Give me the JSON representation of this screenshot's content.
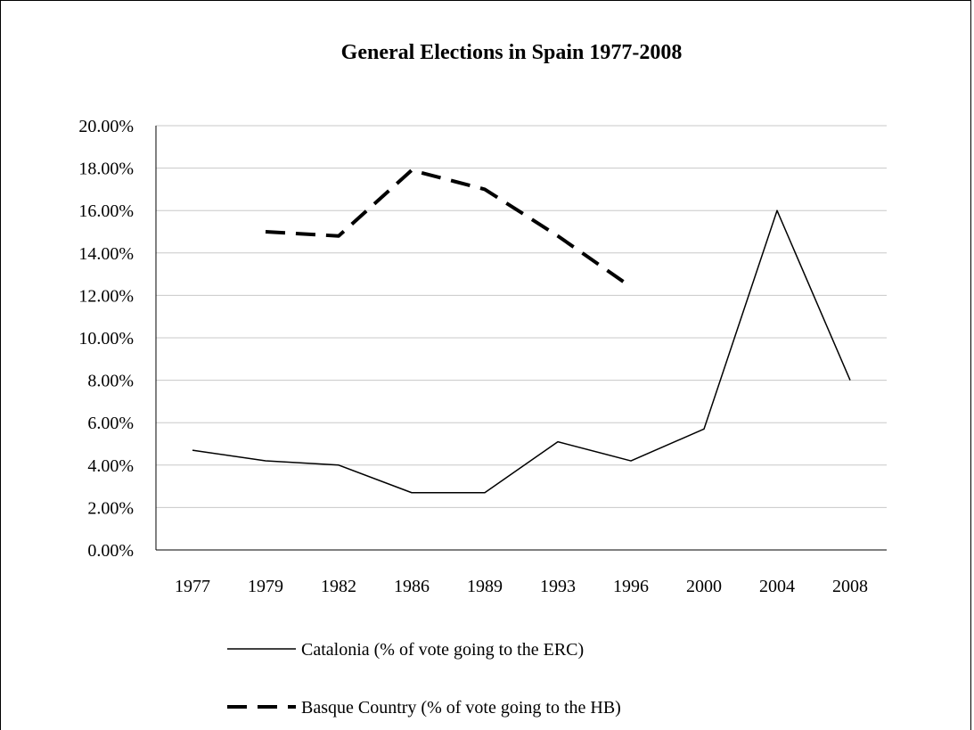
{
  "chart_data": {
    "type": "line",
    "title": "General Elections in Spain 1977-2008",
    "xlabel": "",
    "ylabel": "",
    "categories": [
      "1977",
      "1979",
      "1982",
      "1986",
      "1989",
      "1993",
      "1996",
      "2000",
      "2004",
      "2008"
    ],
    "ylim": [
      0,
      20
    ],
    "yticks": [
      "0.00%",
      "2.00%",
      "4.00%",
      "6.00%",
      "8.00%",
      "10.00%",
      "12.00%",
      "14.00%",
      "16.00%",
      "18.00%",
      "20.00%"
    ],
    "grid": true,
    "legend_position": "bottom",
    "series": [
      {
        "name": "Catalonia (% of vote going to the ERC)",
        "style": "solid",
        "color": "#000000",
        "values": [
          4.7,
          4.2,
          4.0,
          2.7,
          2.7,
          5.1,
          4.2,
          5.7,
          16.0,
          8.0
        ]
      },
      {
        "name": "Basque Country (% of vote going to the HB)",
        "style": "dashed",
        "color": "#000000",
        "values": [
          null,
          15.0,
          14.8,
          17.9,
          17.0,
          14.8,
          12.4,
          null,
          null,
          null
        ]
      }
    ]
  }
}
